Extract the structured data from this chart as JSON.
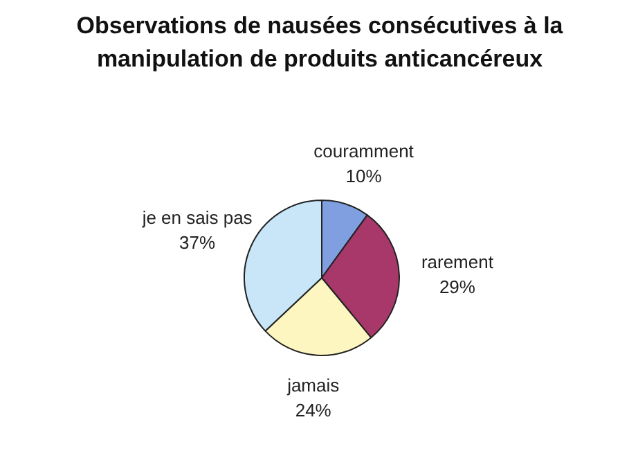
{
  "chart_data": {
    "type": "pie",
    "title": "Observations de nausées consécutives à la\nmanipulation de produits anticancéreux",
    "categories": [
      "couramment",
      "rarement",
      "jamais",
      "je en sais pas"
    ],
    "values": [
      10,
      29,
      24,
      37
    ],
    "colors": [
      "#7f9fe0",
      "#a8386a",
      "#fdf6c0",
      "#c8e6f8"
    ],
    "value_labels": [
      "10%",
      "29%",
      "24%",
      "37%"
    ]
  }
}
